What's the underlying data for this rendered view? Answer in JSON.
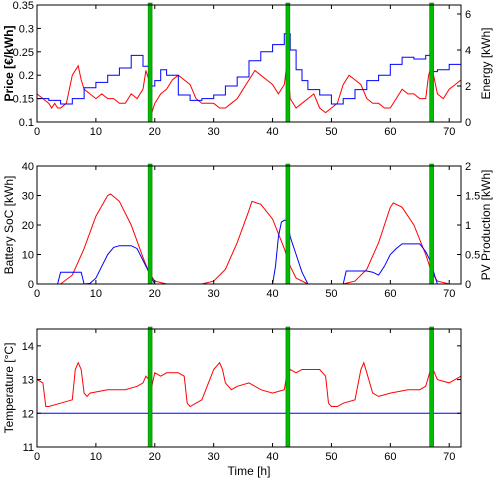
{
  "chart_data": [
    {
      "type": "line",
      "panel": "price-energy",
      "ylabel": "Price [€/kWh]",
      "y2label": "Energy [kWh]",
      "xlim": [
        0,
        72
      ],
      "ylim": [
        0.1,
        0.35
      ],
      "y2lim": [
        0,
        6.5
      ],
      "xticks": [
        "0",
        "10",
        "20",
        "30",
        "40",
        "50",
        "60",
        "70"
      ],
      "yticks": [
        "0.1",
        "0.15",
        "0.2",
        "0.25",
        "0.3",
        "0.35"
      ],
      "y2ticks": [
        "0",
        "2",
        "4",
        "6"
      ],
      "series": [
        {
          "axis": "left",
          "color": "#ff0000",
          "step": false,
          "x": [
            0,
            1,
            2,
            2.5,
            3,
            3.5,
            4,
            5,
            6,
            7,
            7.5,
            8,
            9,
            10,
            11,
            12,
            13,
            14,
            15,
            16,
            17,
            18,
            18.5,
            19,
            19.5,
            20,
            21,
            22,
            23,
            24,
            25,
            26,
            27,
            28,
            29,
            30,
            31,
            32,
            33,
            34,
            35,
            36,
            37,
            38,
            39,
            40,
            41,
            42,
            42.5,
            43,
            44,
            45,
            46,
            47,
            48,
            49,
            50,
            51,
            52,
            53,
            54,
            55,
            56,
            57,
            58,
            59,
            60,
            61,
            62,
            63,
            64,
            65,
            66,
            66.5,
            67,
            68,
            69,
            70,
            71,
            72
          ],
          "y": [
            0.16,
            0.15,
            0.14,
            0.13,
            0.14,
            0.13,
            0.13,
            0.14,
            0.2,
            0.22,
            0.19,
            0.17,
            0.16,
            0.15,
            0.16,
            0.15,
            0.15,
            0.14,
            0.14,
            0.16,
            0.15,
            0.17,
            0.21,
            0.19,
            0.12,
            0.14,
            0.16,
            0.17,
            0.19,
            0.2,
            0.19,
            0.18,
            0.15,
            0.14,
            0.14,
            0.14,
            0.13,
            0.13,
            0.14,
            0.15,
            0.17,
            0.19,
            0.21,
            0.2,
            0.19,
            0.18,
            0.16,
            0.18,
            0.23,
            0.15,
            0.13,
            0.14,
            0.15,
            0.16,
            0.13,
            0.12,
            0.13,
            0.14,
            0.18,
            0.2,
            0.19,
            0.18,
            0.15,
            0.14,
            0.14,
            0.13,
            0.13,
            0.15,
            0.17,
            0.16,
            0.16,
            0.15,
            0.15,
            0.2,
            0.22,
            0.16,
            0.15,
            0.17,
            0.18,
            0.19
          ]
        },
        {
          "axis": "right",
          "color": "#0000ff",
          "step": true,
          "x": [
            0,
            2,
            4,
            6,
            8,
            10,
            12,
            14,
            16,
            18,
            19,
            20,
            21,
            22,
            24,
            26,
            28,
            30,
            32,
            34,
            36,
            38,
            40,
            42,
            43,
            44,
            45,
            46,
            48,
            50,
            52,
            54,
            56,
            58,
            60,
            62,
            64,
            66,
            67,
            68,
            70,
            72
          ],
          "y": [
            1.3,
            1.2,
            1.0,
            1.3,
            1.9,
            2.2,
            2.6,
            3.0,
            3.7,
            3.1,
            2.0,
            2.3,
            2.9,
            2.6,
            1.5,
            1.2,
            1.3,
            1.5,
            2.0,
            2.5,
            3.4,
            3.9,
            4.3,
            4.9,
            4.0,
            2.9,
            2.3,
            1.8,
            1.5,
            1.0,
            1.3,
            1.8,
            2.3,
            2.6,
            3.2,
            3.6,
            3.5,
            3.7,
            2.8,
            2.9,
            3.2,
            3.2
          ]
        }
      ]
    },
    {
      "type": "line",
      "panel": "soc-pv",
      "ylabel": "Battery SoC [kWh]",
      "y2label": "PV Production [kWh]",
      "xlim": [
        0,
        72
      ],
      "ylim": [
        0,
        40
      ],
      "y2lim": [
        0,
        2
      ],
      "xticks": [
        "0",
        "10",
        "20",
        "30",
        "40",
        "50",
        "60",
        "70"
      ],
      "yticks": [
        "0",
        "10",
        "20",
        "30",
        "40"
      ],
      "y2ticks": [
        "0",
        "0.5",
        "1",
        "1.5",
        "2"
      ],
      "series": [
        {
          "axis": "left",
          "color": "#ff0000",
          "step": false,
          "x": [
            0,
            4,
            6,
            8,
            10,
            12,
            12.5,
            14,
            16,
            18,
            19,
            20,
            22,
            28,
            30,
            32,
            34,
            36,
            36.5,
            38,
            40,
            42,
            43,
            44,
            46,
            52,
            54,
            56,
            58,
            60,
            60.5,
            62,
            64,
            66,
            67,
            68,
            70,
            72
          ],
          "y": [
            0,
            0,
            3,
            12,
            23,
            30,
            30.5,
            28,
            20,
            9,
            4,
            1,
            0,
            0,
            1,
            5,
            14,
            25,
            28,
            27,
            22,
            12,
            6,
            2,
            0,
            0,
            1,
            5,
            14,
            26,
            27.5,
            26,
            20,
            10,
            4,
            1,
            0,
            0
          ]
        },
        {
          "axis": "right",
          "color": "#0000ff",
          "step": false,
          "x": [
            0,
            3.5,
            4,
            7.5,
            8,
            9,
            10,
            11,
            12,
            13,
            14,
            15,
            16,
            17,
            18,
            19,
            19.5,
            20,
            40,
            40.5,
            41,
            41.5,
            42,
            42.5,
            43,
            44,
            45,
            46,
            52,
            52.5,
            53,
            56,
            57,
            58,
            59,
            60,
            61,
            62,
            63,
            64,
            65,
            66,
            67,
            67.5,
            68,
            72
          ],
          "y": [
            0,
            0,
            0.2,
            0.2,
            0,
            0.01,
            0.1,
            0.3,
            0.5,
            0.62,
            0.65,
            0.65,
            0.65,
            0.6,
            0.4,
            0.2,
            0.1,
            0,
            0,
            0.3,
            0.8,
            1.05,
            1.08,
            1.08,
            0.8,
            0.5,
            0.2,
            0,
            0,
            0.22,
            0.22,
            0.22,
            0.2,
            0.15,
            0.3,
            0.5,
            0.6,
            0.68,
            0.68,
            0.68,
            0.68,
            0.55,
            0.35,
            0.15,
            0,
            0
          ]
        }
      ]
    },
    {
      "type": "line",
      "panel": "temperature",
      "ylabel": "Temperature [°C]",
      "xlabel": "Time [h]",
      "xlim": [
        0,
        72
      ],
      "ylim": [
        11,
        14.5
      ],
      "xticks": [
        "0",
        "10",
        "20",
        "30",
        "40",
        "50",
        "60",
        "70"
      ],
      "yticks": [
        "11",
        "12",
        "13",
        "14"
      ],
      "series": [
        {
          "axis": "left",
          "color": "#ff0000",
          "step": false,
          "x": [
            0,
            1,
            1.5,
            2,
            4,
            6,
            6.5,
            7,
            7.5,
            8,
            8.5,
            9,
            12,
            15,
            17,
            18,
            18.5,
            19,
            19.5,
            20,
            21,
            22,
            24,
            25,
            25.5,
            26,
            27,
            28,
            30,
            31,
            31.5,
            32,
            33,
            34,
            36,
            38,
            40,
            42,
            42.5,
            43,
            44,
            45,
            46,
            48,
            49,
            49.5,
            50,
            51,
            52,
            54,
            55,
            55.5,
            56,
            57,
            58,
            60,
            63,
            65,
            66,
            67,
            68,
            70,
            72
          ],
          "y": [
            13,
            12.9,
            12.2,
            12.2,
            12.3,
            12.4,
            13.3,
            13.5,
            13.3,
            12.6,
            12.5,
            12.6,
            12.7,
            12.7,
            12.8,
            12.9,
            13.1,
            13,
            12.8,
            13.2,
            13.1,
            13.2,
            13.2,
            13.1,
            12.3,
            12.2,
            12.3,
            12.4,
            13.3,
            13.5,
            13.3,
            12.9,
            12.7,
            12.8,
            12.9,
            12.7,
            12.6,
            12.7,
            13.2,
            13.3,
            13.2,
            13.3,
            13.3,
            13.3,
            13.1,
            12.3,
            12.2,
            12.2,
            12.3,
            12.4,
            13.3,
            13.5,
            13.2,
            12.6,
            12.5,
            12.6,
            12.7,
            12.7,
            12.8,
            13.4,
            13,
            12.9,
            13.1
          ]
        },
        {
          "axis": "left",
          "color": "#0000ff",
          "step": false,
          "x": [
            0,
            72
          ],
          "y": [
            12,
            12
          ]
        }
      ]
    }
  ],
  "markers": {
    "color": "#00bb00",
    "x": [
      19.2,
      42.6,
      67
    ]
  },
  "style": {
    "axis_color": "#000000",
    "background": "#ffffff"
  }
}
